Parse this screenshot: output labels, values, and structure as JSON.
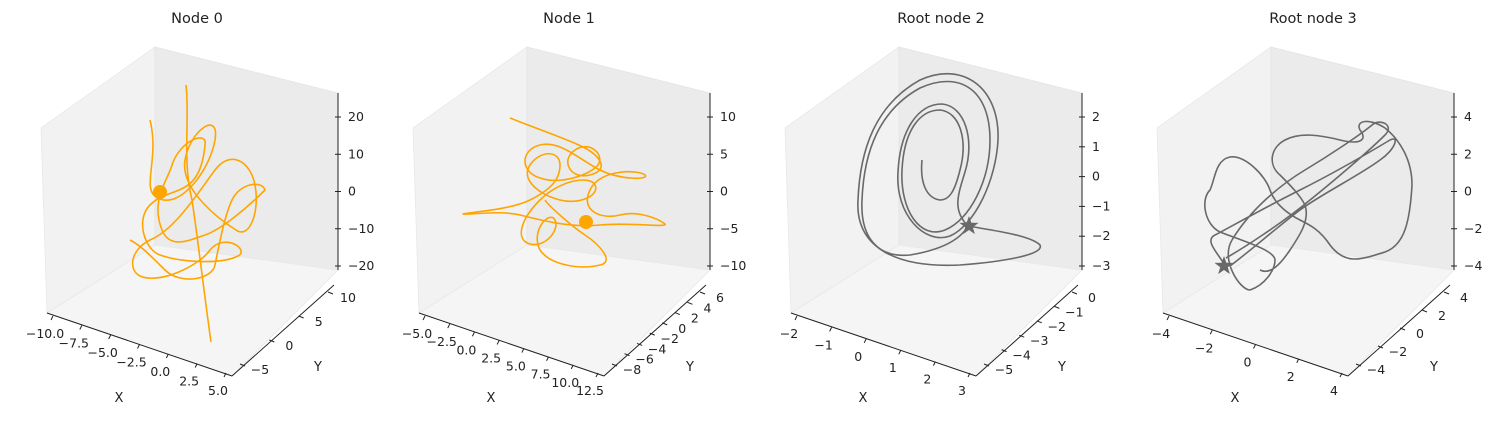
{
  "chart_data": [
    {
      "type": "line3d",
      "title": "Node 0",
      "xlabel": "X",
      "ylabel": "Y",
      "zlabel": "",
      "xticks": [
        "−10.0",
        "−7.5",
        "−5.0",
        "−2.5",
        "0.0",
        "2.5",
        "5.0"
      ],
      "yticks": [
        "−5",
        "0",
        "5",
        "10"
      ],
      "zticks": [
        "−20",
        "−10",
        "0",
        "10",
        "20"
      ],
      "color": "#ffa500",
      "marker": "circle",
      "series": [
        {
          "values": []
        }
      ]
    },
    {
      "type": "line3d",
      "title": "Node 1",
      "xlabel": "X",
      "ylabel": "Y",
      "zlabel": "",
      "xticks": [
        "−5.0",
        "−2.5",
        "0.0",
        "2.5",
        "5.0",
        "7.5",
        "10.0",
        "12.5"
      ],
      "yticks": [
        "−8",
        "−6",
        "−4",
        "−2",
        "0",
        "2",
        "4",
        "6"
      ],
      "zticks": [
        "−10",
        "−5",
        "0",
        "5",
        "10"
      ],
      "color": "#ffa500",
      "marker": "circle",
      "series": [
        {
          "values": []
        }
      ]
    },
    {
      "type": "line3d",
      "title": "Root node 2",
      "xlabel": "X",
      "ylabel": "Y",
      "zlabel": "",
      "xticks": [
        "−2",
        "−1",
        "0",
        "1",
        "2",
        "3"
      ],
      "yticks": [
        "−5",
        "−4",
        "−3",
        "−2",
        "−1",
        "0"
      ],
      "zticks": [
        "−3",
        "−2",
        "−1",
        "0",
        "1",
        "2"
      ],
      "color": "#696969",
      "marker": "star",
      "series": [
        {
          "values": []
        }
      ]
    },
    {
      "type": "line3d",
      "title": "Root node 3",
      "xlabel": "X",
      "ylabel": "Y",
      "zlabel": "",
      "xticks": [
        "−4",
        "−2",
        "0",
        "2",
        "4"
      ],
      "yticks": [
        "−4",
        "−2",
        "0",
        "2",
        "4"
      ],
      "zticks": [
        "−4",
        "−2",
        "0",
        "2",
        "4"
      ],
      "color": "#696969",
      "marker": "star",
      "series": [
        {
          "values": []
        }
      ]
    }
  ]
}
